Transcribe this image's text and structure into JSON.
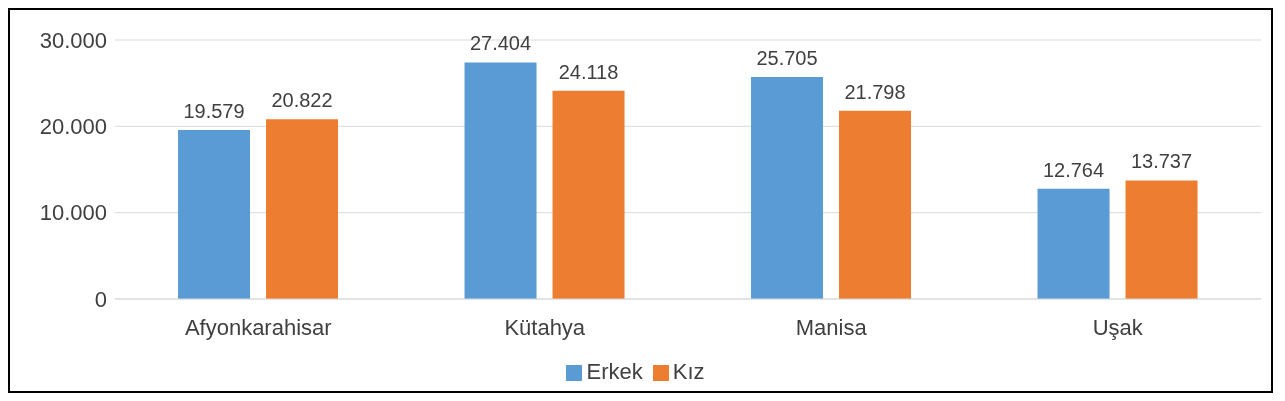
{
  "chart_data": {
    "type": "bar",
    "categories": [
      "Afyonkarahisar",
      "Kütahya",
      "Manisa",
      "Uşak"
    ],
    "series": [
      {
        "name": "Erkek",
        "color": "#5b9bd5",
        "values": [
          19579,
          27404,
          25705,
          12764
        ],
        "value_labels": [
          "19.579",
          "27.404",
          "25.705",
          "12.764"
        ]
      },
      {
        "name": "Kız",
        "color": "#ed7d31",
        "values": [
          20822,
          24118,
          21798,
          13737
        ],
        "value_labels": [
          "20.822",
          "24.118",
          "21.798",
          "13.737"
        ]
      }
    ],
    "ylim": [
      0,
      30000
    ],
    "yticks": [
      {
        "value": 0,
        "label": "0"
      },
      {
        "value": 10000,
        "label": "10.000"
      },
      {
        "value": 20000,
        "label": "20.000"
      },
      {
        "value": 30000,
        "label": "30.000"
      }
    ],
    "grid": "y",
    "legend": "bottom"
  }
}
